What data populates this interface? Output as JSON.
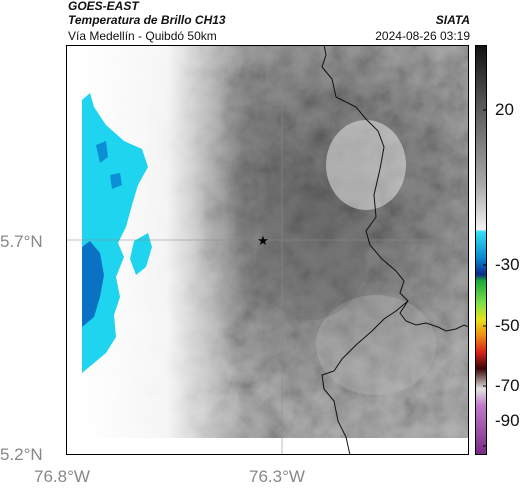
{
  "header": {
    "satellite": "GOES-EAST",
    "product": "Temperatura de Brillo CH13",
    "route": "Vía Medellín - Quibdó 50km",
    "organization": "SIATA",
    "datetime": "2024-08-26 03:19"
  },
  "map": {
    "lat_labels": [
      "5.7°N",
      "5.2°N"
    ],
    "lon_labels": [
      "76.8°W",
      "76.3°W"
    ],
    "marker_icon": "star-icon",
    "colors": {
      "cold_cloud_cyan": "#1fd4ee",
      "cold_cloud_blue": "#0a72c4",
      "gridline": "#888888",
      "border_line": "#000000"
    }
  },
  "colorbar": {
    "tick_labels": [
      "20",
      "-30",
      "-50",
      "-70",
      "-90"
    ]
  }
}
